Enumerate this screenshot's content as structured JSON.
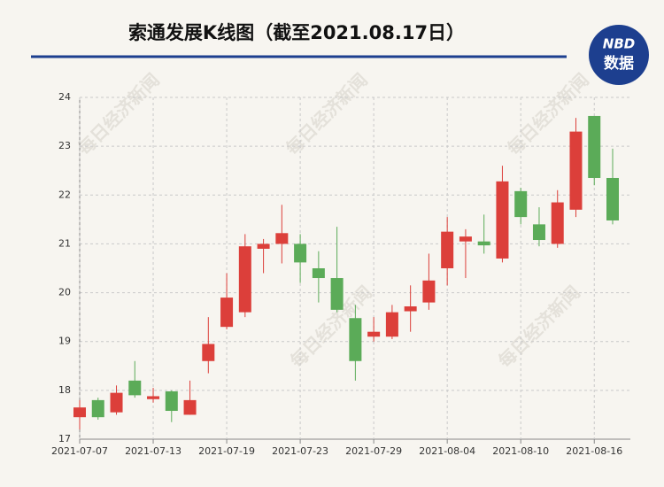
{
  "chart_data": {
    "type": "candlestick",
    "title": "索通发展K线图（截至2021.08.17日）",
    "logo": {
      "top": "NBD",
      "bottom": "数据"
    },
    "watermark": "每日经济新闻",
    "categories": [
      "2021-07-07",
      null,
      null,
      null,
      "2021-07-13",
      null,
      null,
      null,
      "2021-07-19",
      null,
      null,
      null,
      "2021-07-23",
      null,
      null,
      null,
      "2021-07-29",
      null,
      null,
      null,
      "2021-08-04",
      null,
      null,
      null,
      "2021-08-10",
      null,
      null,
      null,
      "2021-08-16",
      null
    ],
    "series": [
      {
        "up_color": "#dc3f3a",
        "down_color": "#5bab58",
        "open": [
          17.45,
          17.8,
          17.55,
          18.2,
          17.82,
          17.98,
          17.5,
          18.6,
          19.3,
          19.6,
          20.9,
          21.0,
          21.0,
          20.5,
          20.3,
          19.48,
          19.1,
          19.1,
          19.62,
          19.8,
          20.5,
          21.05,
          21.05,
          20.7,
          22.08,
          21.4,
          21.0,
          21.7,
          23.62,
          22.35
        ],
        "high": [
          17.8,
          17.85,
          18.1,
          18.6,
          18.05,
          18.0,
          18.2,
          19.5,
          20.4,
          21.2,
          21.1,
          21.8,
          21.2,
          20.85,
          21.35,
          19.75,
          19.5,
          19.75,
          20.15,
          20.8,
          21.55,
          21.3,
          21.6,
          22.6,
          22.15,
          21.75,
          22.1,
          23.58,
          23.62,
          22.95
        ],
        "low": [
          17.2,
          17.4,
          17.5,
          17.85,
          17.75,
          17.35,
          17.5,
          18.35,
          19.25,
          19.5,
          20.4,
          20.6,
          20.2,
          19.8,
          19.6,
          18.2,
          19.0,
          19.05,
          19.2,
          19.65,
          20.15,
          20.3,
          20.8,
          20.62,
          21.4,
          20.95,
          20.92,
          21.55,
          22.2,
          21.4
        ],
        "close": [
          17.65,
          17.45,
          17.95,
          17.9,
          17.88,
          17.58,
          17.8,
          18.95,
          19.9,
          20.95,
          21.0,
          21.22,
          20.62,
          20.3,
          19.65,
          18.6,
          19.2,
          19.6,
          19.72,
          20.25,
          21.25,
          21.15,
          20.97,
          22.28,
          21.55,
          21.08,
          21.85,
          23.3,
          22.35,
          21.48
        ]
      }
    ],
    "ylim": [
      17,
      24
    ],
    "yticks": [
      17,
      18,
      19,
      20,
      21,
      22,
      23,
      24
    ],
    "grid": true
  }
}
